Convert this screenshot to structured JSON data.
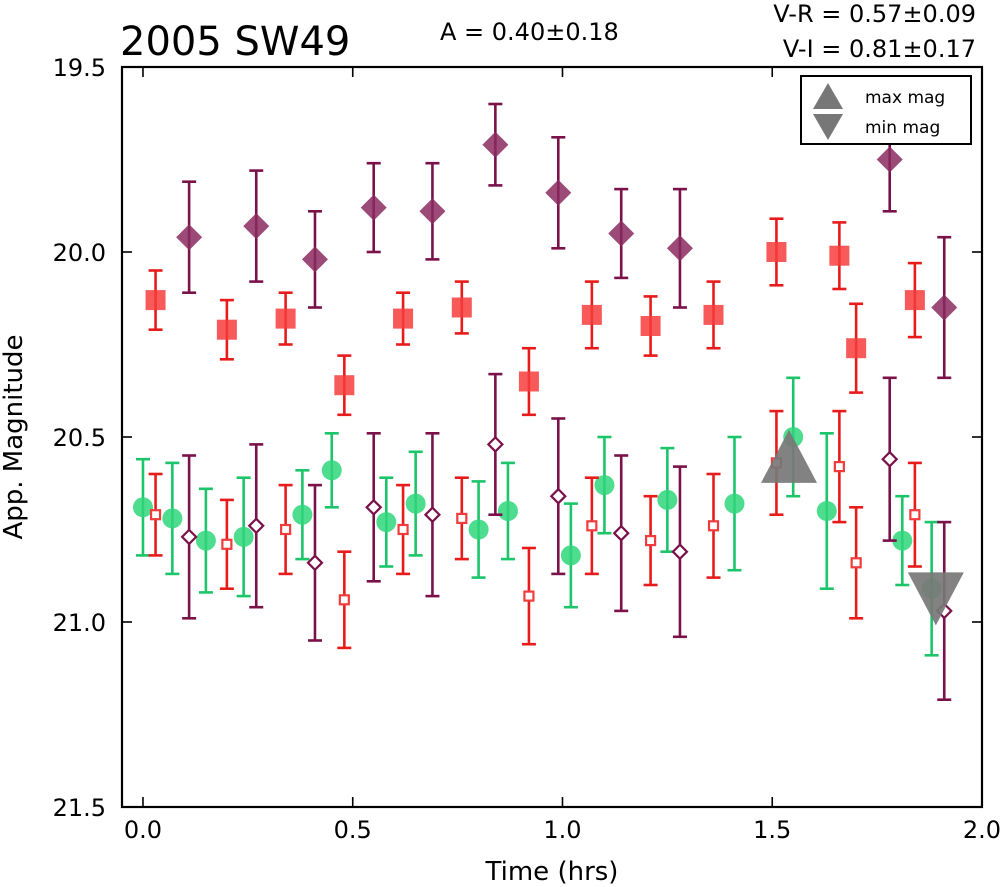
{
  "chart_data": {
    "type": "scatter",
    "title": "2005 SW49",
    "annotations": {
      "amplitude": "A  = 0.40±0.18",
      "v_minus_r": "V-R = 0.57±0.09",
      "v_minus_i": "V-I  = 0.81±0.17"
    },
    "xlabel": "Time (hrs)",
    "ylabel": "App. Magnitude",
    "xlim": [
      -0.05,
      2.0
    ],
    "ylim": [
      21.5,
      19.5
    ],
    "y_inverted": true,
    "xticks": [
      {
        "value": 0.0,
        "label": "0.0"
      },
      {
        "value": 0.5,
        "label": "0.5"
      },
      {
        "value": 1.0,
        "label": "1.0"
      },
      {
        "value": 1.5,
        "label": "1.5"
      },
      {
        "value": 2.0,
        "label": "2.0"
      }
    ],
    "yticks": [
      {
        "value": 19.5,
        "label": "19.5"
      },
      {
        "value": 20.0,
        "label": "20.0"
      },
      {
        "value": 20.5,
        "label": "20.5"
      },
      {
        "value": 21.0,
        "label": "21.0"
      },
      {
        "value": 21.5,
        "label": "21.5"
      }
    ],
    "grid": false,
    "legend": {
      "position": "top-right",
      "entries": [
        {
          "label": "max mag",
          "marker": "triangle-up",
          "color": "#777777"
        },
        {
          "label": "min mag",
          "marker": "triangle-down",
          "color": "#777777"
        }
      ]
    },
    "series": [
      {
        "marker": "diamond",
        "filled": true,
        "color": "#8b2a5f",
        "error_color": "#7a1149",
        "points": [
          {
            "x": 0.11,
            "y": 19.96,
            "err": 0.15
          },
          {
            "x": 0.27,
            "y": 19.93,
            "err": 0.15
          },
          {
            "x": 0.41,
            "y": 20.02,
            "err": 0.13
          },
          {
            "x": 0.55,
            "y": 19.88,
            "err": 0.12
          },
          {
            "x": 0.69,
            "y": 19.89,
            "err": 0.13
          },
          {
            "x": 0.84,
            "y": 19.71,
            "err": 0.11
          },
          {
            "x": 0.99,
            "y": 19.84,
            "err": 0.15
          },
          {
            "x": 1.14,
            "y": 19.95,
            "err": 0.12
          },
          {
            "x": 1.28,
            "y": 19.99,
            "err": 0.16
          },
          {
            "x": 1.78,
            "y": 19.75,
            "err": 0.14
          },
          {
            "x": 1.91,
            "y": 20.15,
            "err": 0.19
          }
        ]
      },
      {
        "marker": "square",
        "filled": true,
        "color": "#f73c3c",
        "error_color": "#e81b1b",
        "points": [
          {
            "x": 0.03,
            "y": 20.13,
            "err": 0.08
          },
          {
            "x": 0.2,
            "y": 20.21,
            "err": 0.08
          },
          {
            "x": 0.34,
            "y": 20.18,
            "err": 0.07
          },
          {
            "x": 0.48,
            "y": 20.36,
            "err": 0.08
          },
          {
            "x": 0.62,
            "y": 20.18,
            "err": 0.07
          },
          {
            "x": 0.76,
            "y": 20.15,
            "err": 0.07
          },
          {
            "x": 0.92,
            "y": 20.35,
            "err": 0.09
          },
          {
            "x": 1.07,
            "y": 20.17,
            "err": 0.09
          },
          {
            "x": 1.21,
            "y": 20.2,
            "err": 0.08
          },
          {
            "x": 1.36,
            "y": 20.17,
            "err": 0.09
          },
          {
            "x": 1.51,
            "y": 20.0,
            "err": 0.09
          },
          {
            "x": 1.66,
            "y": 20.01,
            "err": 0.09
          },
          {
            "x": 1.7,
            "y": 20.26,
            "err": 0.12
          },
          {
            "x": 1.84,
            "y": 20.13,
            "err": 0.1
          }
        ]
      },
      {
        "marker": "circle",
        "filled": true,
        "color": "#2fd67a",
        "error_color": "#1cc46a",
        "points": [
          {
            "x": 0.0,
            "y": 20.69,
            "err": 0.13
          },
          {
            "x": 0.07,
            "y": 20.72,
            "err": 0.15
          },
          {
            "x": 0.15,
            "y": 20.78,
            "err": 0.14
          },
          {
            "x": 0.24,
            "y": 20.77,
            "err": 0.16
          },
          {
            "x": 0.38,
            "y": 20.71,
            "err": 0.12
          },
          {
            "x": 0.45,
            "y": 20.59,
            "err": 0.1
          },
          {
            "x": 0.58,
            "y": 20.73,
            "err": 0.12
          },
          {
            "x": 0.65,
            "y": 20.68,
            "err": 0.14
          },
          {
            "x": 0.8,
            "y": 20.75,
            "err": 0.13
          },
          {
            "x": 0.87,
            "y": 20.7,
            "err": 0.13
          },
          {
            "x": 1.02,
            "y": 20.82,
            "err": 0.14
          },
          {
            "x": 1.1,
            "y": 20.63,
            "err": 0.13
          },
          {
            "x": 1.25,
            "y": 20.67,
            "err": 0.14
          },
          {
            "x": 1.41,
            "y": 20.68,
            "err": 0.18
          },
          {
            "x": 1.55,
            "y": 20.5,
            "err": 0.16
          },
          {
            "x": 1.63,
            "y": 20.7,
            "err": 0.21
          },
          {
            "x": 1.81,
            "y": 20.78,
            "err": 0.12
          },
          {
            "x": 1.88,
            "y": 20.91,
            "err": 0.18
          }
        ]
      },
      {
        "marker": "square",
        "filled": false,
        "color": "#f03c3c",
        "error_color": "#e81b1b",
        "points": [
          {
            "x": 0.03,
            "y": 20.71,
            "err": 0.11
          },
          {
            "x": 0.2,
            "y": 20.79,
            "err": 0.12
          },
          {
            "x": 0.34,
            "y": 20.75,
            "err": 0.12
          },
          {
            "x": 0.48,
            "y": 20.94,
            "err": 0.13
          },
          {
            "x": 0.62,
            "y": 20.75,
            "err": 0.12
          },
          {
            "x": 0.76,
            "y": 20.72,
            "err": 0.11
          },
          {
            "x": 0.92,
            "y": 20.93,
            "err": 0.13
          },
          {
            "x": 1.07,
            "y": 20.74,
            "err": 0.13
          },
          {
            "x": 1.21,
            "y": 20.78,
            "err": 0.12
          },
          {
            "x": 1.36,
            "y": 20.74,
            "err": 0.14
          },
          {
            "x": 1.51,
            "y": 20.57,
            "err": 0.14
          },
          {
            "x": 1.66,
            "y": 20.58,
            "err": 0.15
          },
          {
            "x": 1.7,
            "y": 20.84,
            "err": 0.15
          },
          {
            "x": 1.84,
            "y": 20.71,
            "err": 0.14
          }
        ]
      },
      {
        "marker": "diamond",
        "filled": false,
        "color": "#7a1149",
        "error_color": "#7a1149",
        "points": [
          {
            "x": 0.11,
            "y": 20.77,
            "err": 0.22
          },
          {
            "x": 0.27,
            "y": 20.74,
            "err": 0.22
          },
          {
            "x": 0.41,
            "y": 20.84,
            "err": 0.21
          },
          {
            "x": 0.55,
            "y": 20.69,
            "err": 0.2
          },
          {
            "x": 0.69,
            "y": 20.71,
            "err": 0.22
          },
          {
            "x": 0.84,
            "y": 20.52,
            "err": 0.19
          },
          {
            "x": 0.99,
            "y": 20.66,
            "err": 0.21
          },
          {
            "x": 1.14,
            "y": 20.76,
            "err": 0.21
          },
          {
            "x": 1.28,
            "y": 20.81,
            "err": 0.23
          },
          {
            "x": 1.78,
            "y": 20.56,
            "err": 0.22
          },
          {
            "x": 1.91,
            "y": 20.97,
            "err": 0.24
          }
        ]
      }
    ],
    "extrema_markers": [
      {
        "type": "max",
        "marker": "triangle-up",
        "x": 1.54,
        "y": 20.57,
        "color": "#777777"
      },
      {
        "type": "min",
        "marker": "triangle-down",
        "x": 1.89,
        "y": 20.92,
        "color": "#777777"
      }
    ]
  }
}
